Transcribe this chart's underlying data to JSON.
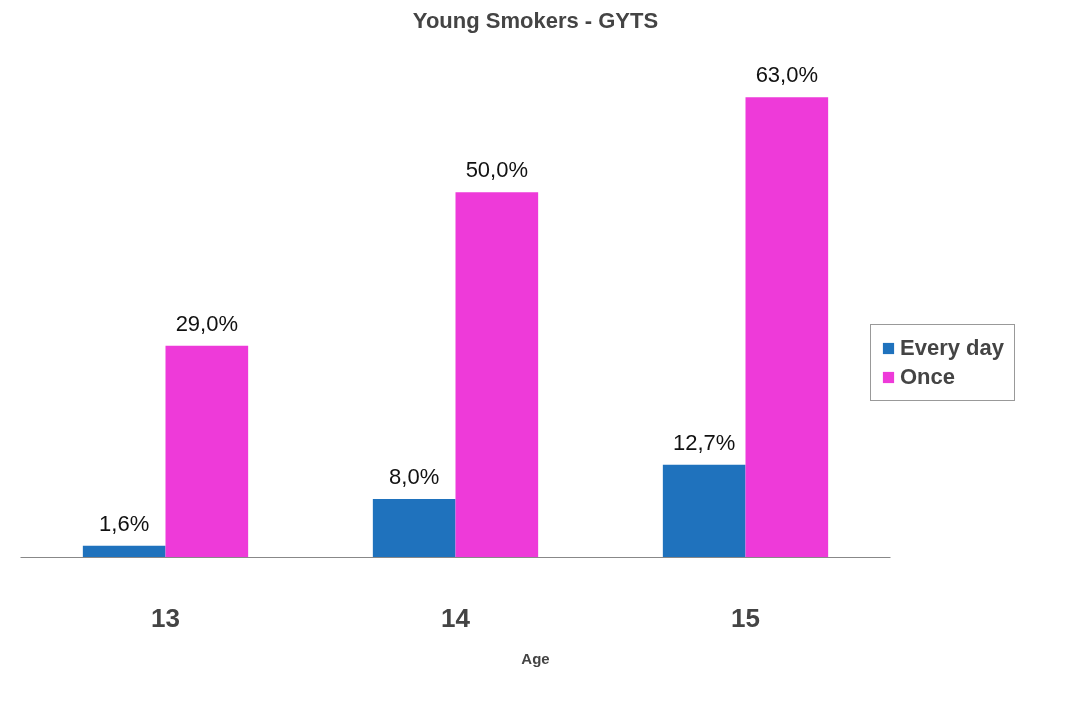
{
  "chart_data": {
    "type": "bar",
    "title": "Young Smokers - GYTS",
    "xlabel": "Age",
    "categories": [
      "13",
      "14",
      "15"
    ],
    "series": [
      {
        "name": "Every day",
        "color": "#1f72bd",
        "values": [
          1.6,
          8.0,
          12.7
        ],
        "value_labels": [
          "1,6%",
          "8,0%",
          "12,7%"
        ]
      },
      {
        "name": "Once",
        "color": "#ee3ad9",
        "values": [
          29.0,
          50.0,
          63.0
        ],
        "value_labels": [
          "29,0%",
          "50,0%",
          "63,0%"
        ]
      }
    ],
    "legend": "right",
    "grid": false
  }
}
